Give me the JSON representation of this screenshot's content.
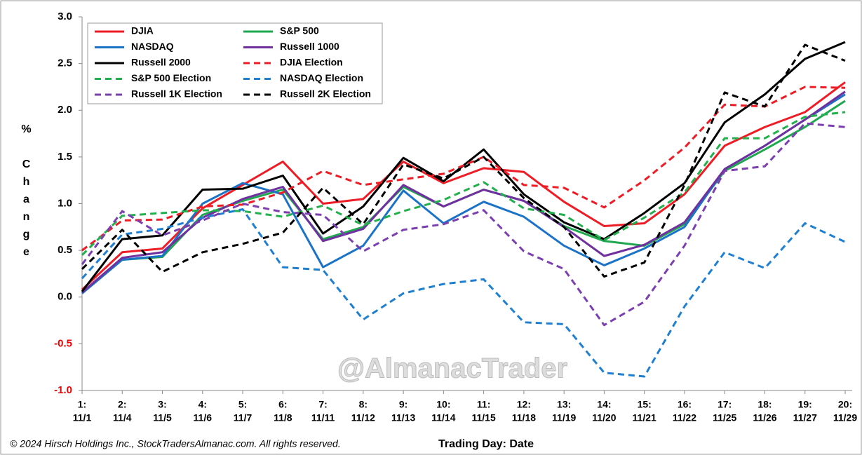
{
  "chart_data": {
    "type": "line",
    "x_label": "Trading Day: Date",
    "y_label": "% Change",
    "watermark": "@AlmanacTrader",
    "copyright": "© 2024 Hirsch Holdings Inc., StockTradersAlmanac.com. All rights reserved.",
    "categories": [
      [
        "1:",
        "11/1"
      ],
      [
        "2:",
        "11/4"
      ],
      [
        "3:",
        "11/5"
      ],
      [
        "4:",
        "11/6"
      ],
      [
        "5:",
        "11/7"
      ],
      [
        "6:",
        "11/8"
      ],
      [
        "7:",
        "11/11"
      ],
      [
        "8:",
        "11/12"
      ],
      [
        "9:",
        "11/13"
      ],
      [
        "10:",
        "11/14"
      ],
      [
        "11:",
        "11/15"
      ],
      [
        "12:",
        "11/18"
      ],
      [
        "13:",
        "11/19"
      ],
      [
        "14:",
        "11/20"
      ],
      [
        "15:",
        "11/21"
      ],
      [
        "16:",
        "11/22"
      ],
      [
        "17:",
        "11/25"
      ],
      [
        "18:",
        "11/26"
      ],
      [
        "19:",
        "11/27"
      ],
      [
        "20:",
        "11/29"
      ]
    ],
    "ylim": [
      -1,
      3
    ],
    "yticks": [
      {
        "value": -1,
        "label": "-1.0"
      },
      {
        "value": -0.5,
        "label": "-0.5"
      },
      {
        "value": 0,
        "label": "0.0"
      },
      {
        "value": 0.5,
        "label": "0.5"
      },
      {
        "value": 1,
        "label": "1.0"
      },
      {
        "value": 1.5,
        "label": "1.5"
      },
      {
        "value": 2,
        "label": "2.0"
      },
      {
        "value": 2.5,
        "label": "2.5"
      },
      {
        "value": 3,
        "label": "3.0"
      }
    ],
    "grid": false,
    "legend": "top-left",
    "series": [
      {
        "name": "DJIA",
        "color": "#ee1c25",
        "dash": false,
        "values": [
          0.08,
          0.48,
          0.52,
          0.95,
          1.2,
          1.45,
          1.0,
          1.05,
          1.45,
          1.22,
          1.38,
          1.34,
          1.02,
          0.76,
          0.79,
          1.1,
          1.62,
          1.82,
          1.98,
          2.3
        ]
      },
      {
        "name": "S&P 500",
        "color": "#1fa84f",
        "dash": false,
        "values": [
          0.04,
          0.4,
          0.43,
          0.88,
          1.03,
          1.15,
          0.62,
          0.75,
          1.18,
          0.97,
          1.15,
          1.03,
          0.76,
          0.6,
          0.55,
          0.78,
          1.35,
          1.58,
          1.82,
          2.1
        ]
      },
      {
        "name": "NASDAQ",
        "color": "#1a73c7",
        "dash": false,
        "values": [
          0.04,
          0.4,
          0.44,
          1.0,
          1.22,
          1.1,
          0.32,
          0.55,
          1.14,
          0.79,
          1.02,
          0.86,
          0.55,
          0.34,
          0.52,
          0.75,
          1.37,
          1.62,
          1.9,
          2.17
        ]
      },
      {
        "name": "Russell 1000",
        "color": "#7030a0",
        "dash": false,
        "values": [
          0.05,
          0.42,
          0.48,
          0.85,
          1.05,
          1.18,
          0.6,
          0.73,
          1.2,
          0.97,
          1.15,
          1.03,
          0.75,
          0.44,
          0.56,
          0.8,
          1.37,
          1.62,
          1.9,
          2.2
        ]
      },
      {
        "name": "Russell 2000",
        "color": "#000000",
        "dash": false,
        "values": [
          0.06,
          0.62,
          0.66,
          1.15,
          1.16,
          1.3,
          0.68,
          0.97,
          1.49,
          1.24,
          1.58,
          1.1,
          0.8,
          0.62,
          0.9,
          1.22,
          1.87,
          2.17,
          2.55,
          2.73
        ]
      },
      {
        "name": "DJIA Election",
        "color": "#ee1c25",
        "dash": true,
        "values": [
          0.5,
          0.82,
          0.83,
          0.97,
          0.99,
          1.12,
          1.35,
          1.2,
          1.26,
          1.32,
          1.5,
          1.2,
          1.17,
          0.96,
          1.25,
          1.6,
          2.06,
          2.04,
          2.25,
          2.24
        ]
      },
      {
        "name": "S&P 500 Election",
        "color": "#22b04c",
        "dash": true,
        "values": [
          0.45,
          0.87,
          0.9,
          0.93,
          0.92,
          0.86,
          0.98,
          0.77,
          0.92,
          1.04,
          1.23,
          0.95,
          0.88,
          0.61,
          0.85,
          1.12,
          1.7,
          1.7,
          1.93,
          1.98
        ]
      },
      {
        "name": "NASDAQ Election",
        "color": "#1f7fd0",
        "dash": true,
        "values": [
          0.2,
          0.67,
          0.73,
          0.85,
          0.94,
          0.32,
          0.29,
          -0.24,
          0.04,
          0.14,
          0.19,
          -0.27,
          -0.29,
          -0.81,
          -0.85,
          -0.1,
          0.48,
          0.31,
          0.79,
          0.59
        ]
      },
      {
        "name": "Russell 1K Election",
        "color": "#7b3fb0",
        "dash": true,
        "values": [
          0.35,
          0.92,
          0.66,
          0.82,
          1.0,
          0.91,
          0.88,
          0.49,
          0.72,
          0.78,
          0.93,
          0.49,
          0.3,
          -0.3,
          -0.05,
          0.55,
          1.35,
          1.4,
          1.86,
          1.82
        ]
      },
      {
        "name": "Russell 2K Election",
        "color": "#000000",
        "dash": true,
        "values": [
          0.3,
          0.72,
          0.27,
          0.48,
          0.57,
          0.69,
          1.17,
          0.78,
          1.42,
          1.27,
          1.5,
          1.06,
          0.75,
          0.22,
          0.37,
          1.2,
          2.19,
          2.04,
          2.7,
          2.53
        ]
      }
    ]
  }
}
